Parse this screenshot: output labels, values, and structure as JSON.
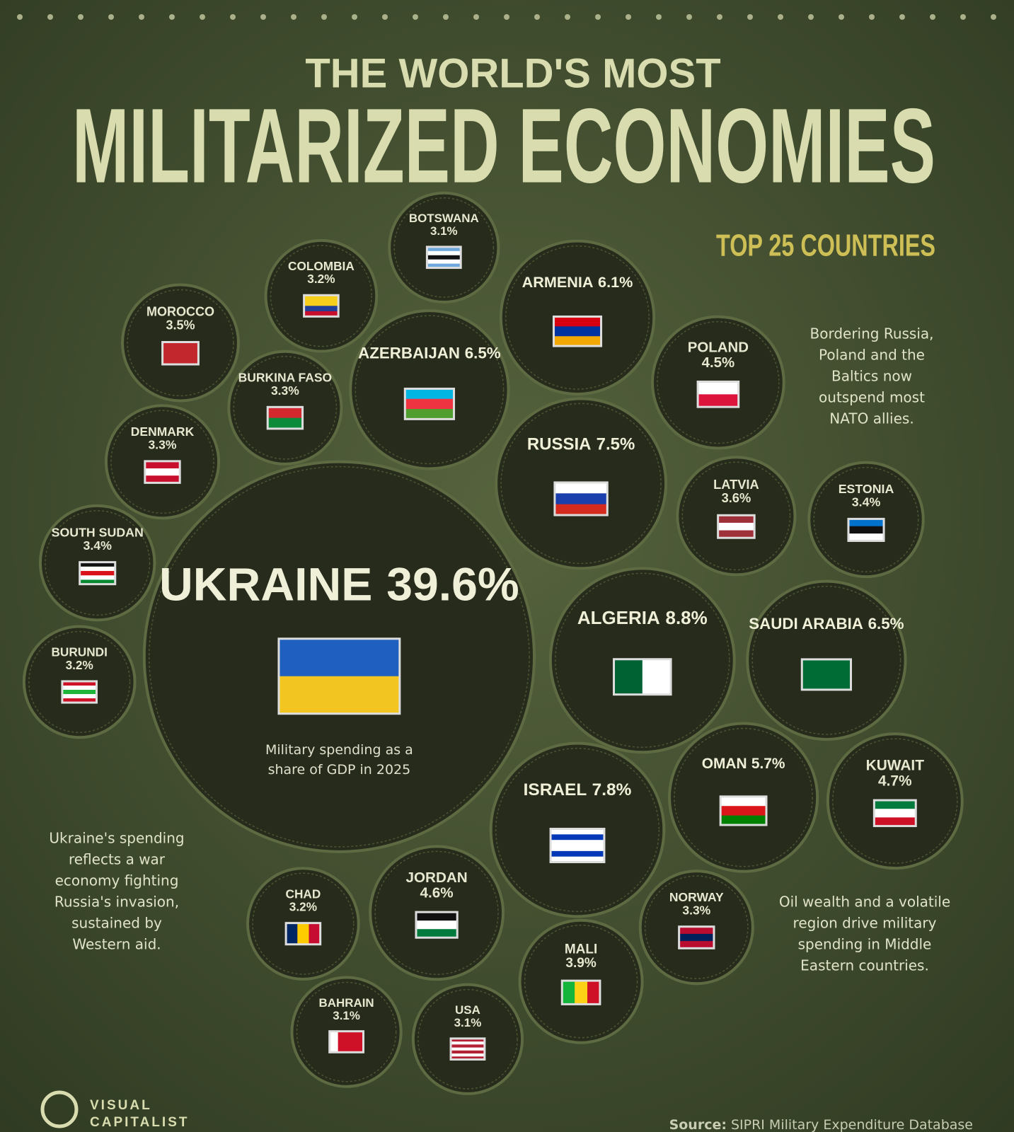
{
  "chart_data": {
    "type": "bubble",
    "title": "THE WORLD'S MOST",
    "title_main": "MILITARIZED ECONOMIES",
    "subtitle": "TOP 25 COUNTRIES",
    "center_note": [
      "Military spending as a",
      "share of GDP in 2025"
    ],
    "annotations": [
      [
        "Bordering Russia,",
        "Poland and the",
        "Baltics now",
        "outspend most",
        "NATO allies."
      ],
      [
        "Ukraine's spending",
        "reflects a war",
        "economy fighting",
        "Russia's invasion,",
        "sustained by",
        "Western aid."
      ],
      [
        "Oil wealth and a volatile",
        "region drive military",
        "spending in Middle",
        "Eastern countries."
      ]
    ],
    "brand": [
      "VISUAL",
      "CAPITALIST"
    ],
    "source_label": "Source:",
    "source": "SIPRI Military Expenditure Database",
    "categories": [
      "UKRAINE",
      "BOTSWANA",
      "COLOMBIA",
      "MOROCCO",
      "ARMENIA",
      "BURKINA FASO",
      "AZERBAIJAN",
      "POLAND",
      "DENMARK",
      "RUSSIA",
      "LATVIA",
      "ESTONIA",
      "SOUTH SUDAN",
      "ALGERIA",
      "SAUDI ARABIA",
      "BURUNDI",
      "OMAN",
      "KUWAIT",
      "ISRAEL",
      "CHAD",
      "JORDAN",
      "NORWAY",
      "MALI",
      "BAHRAIN",
      "USA"
    ],
    "values": [
      39.6,
      3.1,
      3.2,
      3.5,
      6.1,
      3.3,
      6.5,
      4.5,
      3.3,
      7.5,
      3.6,
      3.4,
      3.4,
      8.8,
      6.5,
      3.2,
      5.7,
      4.7,
      7.8,
      3.2,
      4.6,
      3.3,
      3.9,
      3.1,
      3.1
    ],
    "value_labels": [
      "39.6%",
      "3.1%",
      "3.2%",
      "3.5%",
      "6.1%",
      "3.3%",
      "6.5%",
      "4.5%",
      "3.3%",
      "7.5%",
      "3.6%",
      "3.4%",
      "3.4%",
      "8.8%",
      "6.5%",
      "3.2%",
      "5.7%",
      "4.7%",
      "7.8%",
      "3.2%",
      "4.6%",
      "3.3%",
      "3.9%",
      "3.1%",
      "3.1%"
    ],
    "color": "#262b1b"
  }
}
